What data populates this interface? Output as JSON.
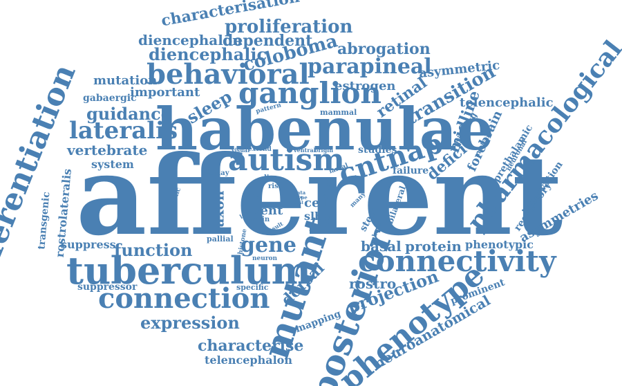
{
  "color": "#4a80b3",
  "words": [
    "afferent",
    "habenulae",
    "differentiation",
    "tuberculum",
    "connectivity",
    "mutant",
    "posterior",
    "phenotype",
    "pharmacological",
    "autism",
    "cntnap",
    "ganglion",
    "behavioral",
    "connection",
    "parapineal",
    "proliferation",
    "characterisation",
    "diencephalon",
    "dependent",
    "coloboma",
    "abrogation",
    "diencephalic",
    "asymmetric",
    "mutation",
    "important",
    "estrogen",
    "retinal",
    "transition",
    "gabaergic",
    "sleep",
    "guidance",
    "lateralis",
    "telencephalic",
    "midline",
    "vertebrate",
    "system",
    "studies",
    "forebrain",
    "deficit",
    "prethalamic",
    "failure",
    "neuronal",
    "innervation",
    "regulatory",
    "asymmetries",
    "rostrolateralis",
    "transgenic",
    "suppress",
    "function",
    "gene",
    "basal",
    "protein",
    "phenotypic",
    "rostro",
    "projection",
    "dorsal",
    "suppressor",
    "specific",
    "expression",
    "mapping",
    "prominent",
    "neuroanatomical",
    "characterise",
    "telencephalon",
    "axon",
    "vent",
    "cell",
    "slbp",
    "stem",
    "main",
    "loop",
    "line",
    "risk",
    "display",
    "genetic",
    "visual",
    "extend",
    "ventral",
    "origin",
    "larval",
    "pattern",
    "mammal",
    "binding",
    "analysis",
    "pallial",
    "histone",
    "neuron",
    "result",
    "lead",
    "circuit",
    "type",
    "data",
    "fate",
    "dest",
    "stage",
    "embryo",
    "many",
    "bilateral"
  ]
}
